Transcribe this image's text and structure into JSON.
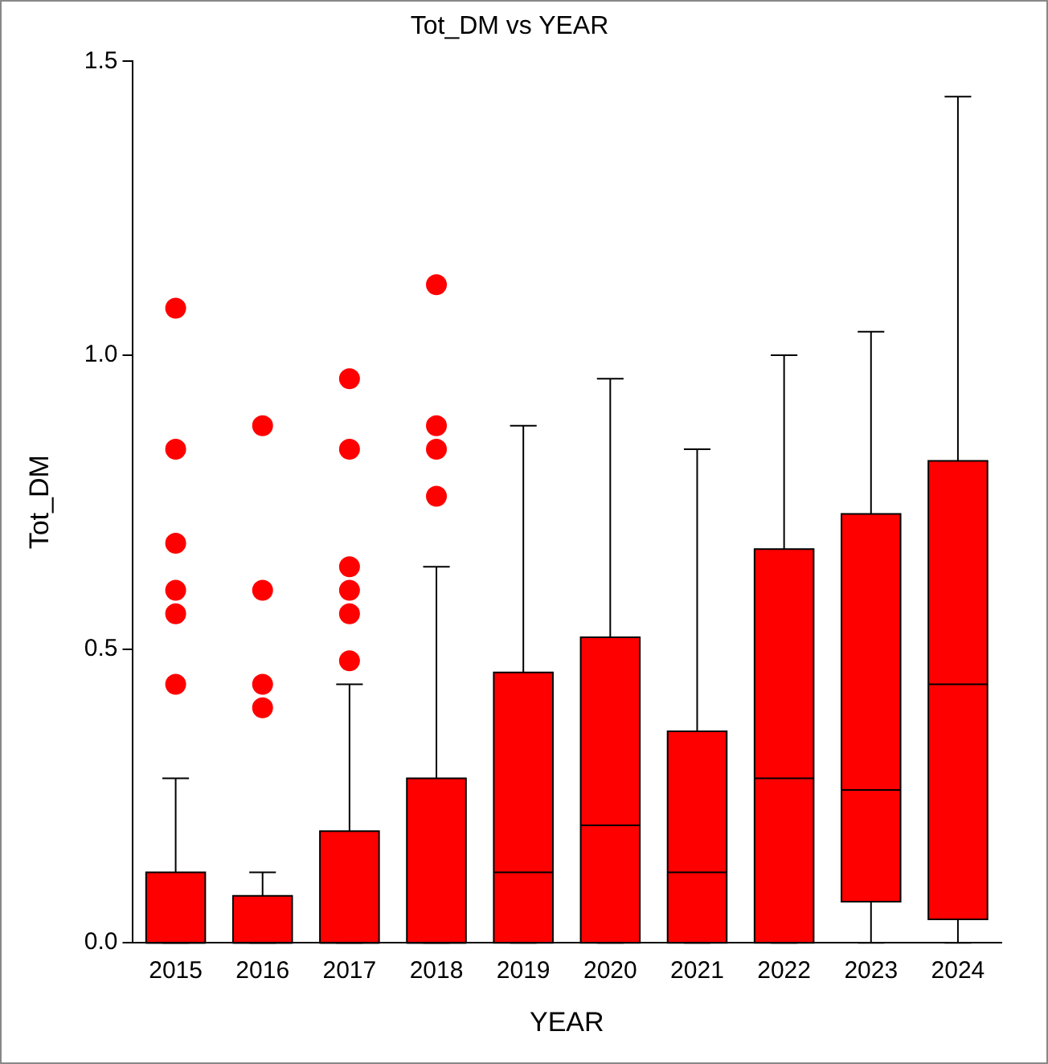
{
  "chart_data": {
    "type": "box",
    "title": "Tot_DM vs YEAR",
    "xlabel": "YEAR",
    "ylabel": "Tot_DM",
    "categories": [
      "2015",
      "2016",
      "2017",
      "2018",
      "2019",
      "2020",
      "2021",
      "2022",
      "2023",
      "2024"
    ],
    "color": "#ff0000",
    "grid": false,
    "legend": false,
    "ylim": [
      0,
      1.5
    ],
    "yticks": [
      {
        "value": 0,
        "label": "0.0"
      },
      {
        "value": 0.5,
        "label": "0.5"
      },
      {
        "value": 1,
        "label": "1.0"
      },
      {
        "value": 1.5,
        "label": "1.5"
      }
    ],
    "boxes": [
      {
        "low": 0,
        "q1": 0,
        "median": 0,
        "q3": 0.12,
        "high": 0.28,
        "outliers": [
          0.44,
          0.56,
          0.6,
          0.68,
          0.84,
          1.08
        ]
      },
      {
        "low": 0,
        "q1": 0,
        "median": 0,
        "q3": 0.08,
        "high": 0.12,
        "outliers": [
          0.4,
          0.44,
          0.6,
          0.88
        ]
      },
      {
        "low": 0,
        "q1": 0,
        "median": 0,
        "q3": 0.19,
        "high": 0.44,
        "outliers": [
          0.48,
          0.56,
          0.6,
          0.64,
          0.84,
          0.96
        ]
      },
      {
        "low": 0,
        "q1": 0,
        "median": 0,
        "q3": 0.28,
        "high": 0.64,
        "outliers": [
          0.76,
          0.84,
          0.88,
          1.12
        ]
      },
      {
        "low": 0,
        "q1": 0,
        "median": 0.12,
        "q3": 0.46,
        "high": 0.88
      },
      {
        "low": 0,
        "q1": 0,
        "median": 0.2,
        "q3": 0.52,
        "high": 0.96
      },
      {
        "low": 0,
        "q1": 0,
        "median": 0.12,
        "q3": 0.36,
        "high": 0.84
      },
      {
        "low": 0,
        "q1": 0,
        "median": 0.28,
        "q3": 0.67,
        "high": 1.0
      },
      {
        "low": 0,
        "q1": 0.07,
        "median": 0.26,
        "q3": 0.73,
        "high": 1.04
      },
      {
        "low": 0,
        "q1": 0.04,
        "median": 0.44,
        "q3": 0.82,
        "high": 1.44
      }
    ]
  }
}
